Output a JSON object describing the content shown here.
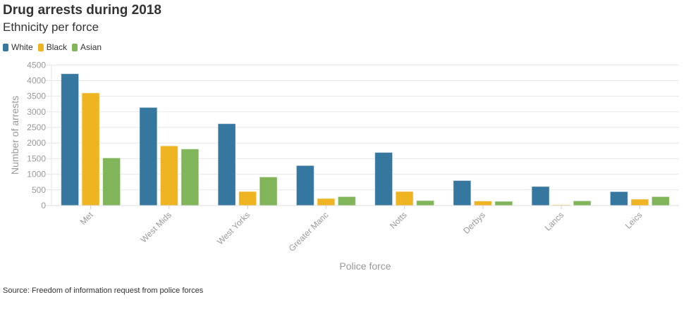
{
  "chart_data": {
    "type": "bar",
    "title": "Drug arrests during 2018",
    "subtitle": "Ethnicity per force",
    "xlabel": "Police force",
    "ylabel": "Number of arrests",
    "ylim": [
      0,
      4500
    ],
    "yticks": [
      0,
      500,
      1000,
      1500,
      2000,
      2500,
      3000,
      3500,
      4000,
      4500
    ],
    "grid": true,
    "legend_position": "top-left",
    "categories": [
      "Met",
      "West Mids",
      "West Yorks",
      "Greater Manc",
      "Notts",
      "Derbys",
      "Lancs",
      "Leics"
    ],
    "series": [
      {
        "name": "White",
        "color": "#3677a0",
        "values": [
          4220,
          3140,
          2620,
          1280,
          1700,
          800,
          610,
          445
        ]
      },
      {
        "name": "Black",
        "color": "#eeb422",
        "values": [
          3605,
          1910,
          450,
          225,
          450,
          145,
          25,
          205
        ]
      },
      {
        "name": "Asian",
        "color": "#80b55a",
        "values": [
          1525,
          1810,
          915,
          285,
          160,
          135,
          150,
          285
        ]
      }
    ],
    "source": "Source: Freedom of information request from police forces"
  }
}
